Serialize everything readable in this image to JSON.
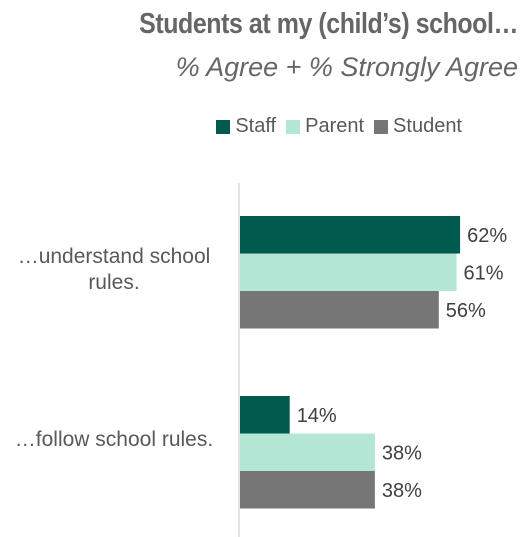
{
  "chart_data": {
    "type": "bar",
    "orientation": "horizontal",
    "title": "Students at my (child’s) school…",
    "subtitle": "% Agree + % Strongly Agree",
    "categories": [
      "…understand school rules.",
      "…follow school rules."
    ],
    "series": [
      {
        "name": "Staff",
        "color": "#005a4e",
        "values": [
          62,
          14
        ],
        "labels": [
          "62%",
          "14%"
        ]
      },
      {
        "name": "Parent",
        "color": "#b3e6d4",
        "values": [
          61,
          38
        ],
        "labels": [
          "61%",
          "38%"
        ]
      },
      {
        "name": "Student",
        "color": "#767676",
        "values": [
          56,
          38
        ],
        "labels": [
          "56%",
          "38%"
        ]
      }
    ],
    "xlim": [
      0,
      100
    ],
    "legend_position": "top-right",
    "grid": false
  }
}
